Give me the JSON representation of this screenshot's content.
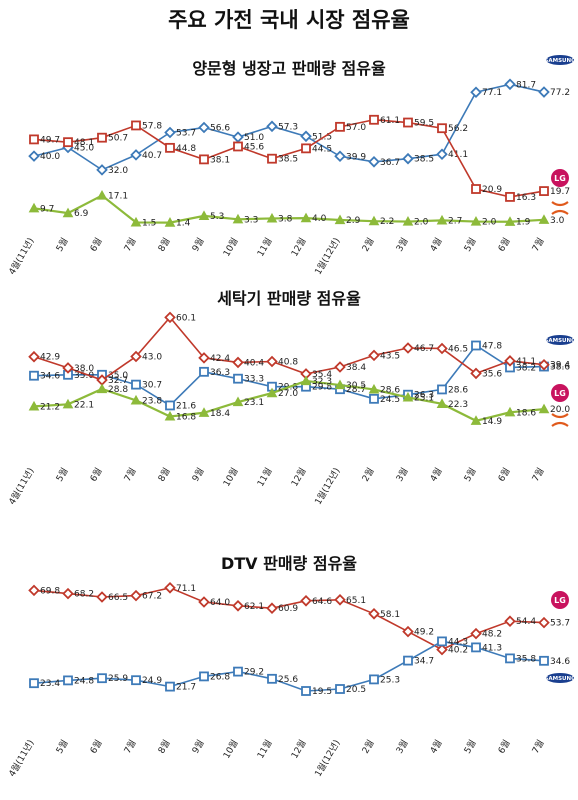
{
  "page_title": "주요 가전 국내 시장 점유율",
  "categories": [
    "4월(11년)",
    "5월",
    "6월",
    "7월",
    "8월",
    "9월",
    "10월",
    "11월",
    "12월",
    "1월(12년)",
    "2월",
    "3월",
    "4월",
    "5월",
    "6월",
    "7월"
  ],
  "colors": {
    "samsung": "#3d7ab8",
    "lg": "#c0392b",
    "other": "#8dba3a",
    "logo_lg": "#c8135e",
    "logo_samsung": "#1a3f8f",
    "logo_other": "#e05a1c"
  },
  "chart_data": [
    {
      "type": "line",
      "title": "양문형 냉장고 판매량 점유율",
      "ylim": [
        0,
        90
      ],
      "series": [
        {
          "name": "SAMSUNG",
          "marker": "diamond",
          "color": "#3d7ab8",
          "values": [
            40.0,
            45.0,
            32.0,
            40.7,
            53.7,
            56.6,
            51.0,
            57.3,
            51.5,
            39.9,
            36.7,
            38.5,
            41.1,
            77.1,
            81.7,
            77.2
          ]
        },
        {
          "name": "LG",
          "marker": "square",
          "color": "#c0392b",
          "values": [
            49.7,
            48.1,
            50.7,
            57.8,
            44.8,
            38.1,
            45.6,
            38.5,
            44.5,
            57.0,
            61.1,
            59.5,
            56.2,
            20.9,
            16.3,
            19.7
          ]
        },
        {
          "name": "",
          "marker": "triangle",
          "color": "#8dba3a",
          "values": [
            9.7,
            6.9,
            17.1,
            1.5,
            1.4,
            5.3,
            3.3,
            3.8,
            4.0,
            2.9,
            2.2,
            2.0,
            2.7,
            2.0,
            1.9,
            3.0
          ]
        }
      ]
    },
    {
      "type": "line",
      "title": "세탁기 판매량 점유율",
      "ylim": [
        10,
        62
      ],
      "series": [
        {
          "name": "SAMSUNG",
          "marker": "square",
          "color": "#3d7ab8",
          "values": [
            34.6,
            35.0,
            35.0,
            30.7,
            21.6,
            36.3,
            33.3,
            29.8,
            29.8,
            28.7,
            24.5,
            26.3,
            28.6,
            47.8,
            38.2,
            38.6
          ]
        },
        {
          "name": "LG",
          "marker": "diamond",
          "color": "#c0392b",
          "values": [
            42.9,
            38.0,
            32.7,
            43.0,
            60.1,
            42.4,
            40.4,
            40.8,
            35.4,
            38.4,
            43.5,
            46.7,
            46.5,
            35.6,
            41.1,
            39.4
          ]
        },
        {
          "name": "",
          "marker": "triangle",
          "color": "#8dba3a",
          "values": [
            21.2,
            22.1,
            28.8,
            23.8,
            16.8,
            18.4,
            23.1,
            27.0,
            32.3,
            30.5,
            28.6,
            25.1,
            22.3,
            14.9,
            18.6,
            20.0
          ]
        }
      ]
    },
    {
      "type": "line",
      "title": "DTV 판매량 점유율",
      "ylim": [
        15,
        75
      ],
      "series": [
        {
          "name": "LG",
          "marker": "diamond",
          "color": "#c0392b",
          "values": [
            69.8,
            68.2,
            66.5,
            67.2,
            71.1,
            64.0,
            62.1,
            60.9,
            64.6,
            65.1,
            58.1,
            49.2,
            40.2,
            48.2,
            54.4,
            53.7
          ]
        },
        {
          "name": "SAMSUNG",
          "marker": "square",
          "color": "#3d7ab8",
          "values": [
            23.4,
            24.8,
            25.9,
            24.9,
            21.7,
            26.8,
            29.2,
            25.6,
            19.5,
            20.5,
            25.3,
            34.7,
            44.3,
            41.3,
            35.8,
            34.6
          ]
        }
      ]
    }
  ],
  "logos": {
    "samsung": "SAMSUNG",
    "lg": "LG"
  }
}
